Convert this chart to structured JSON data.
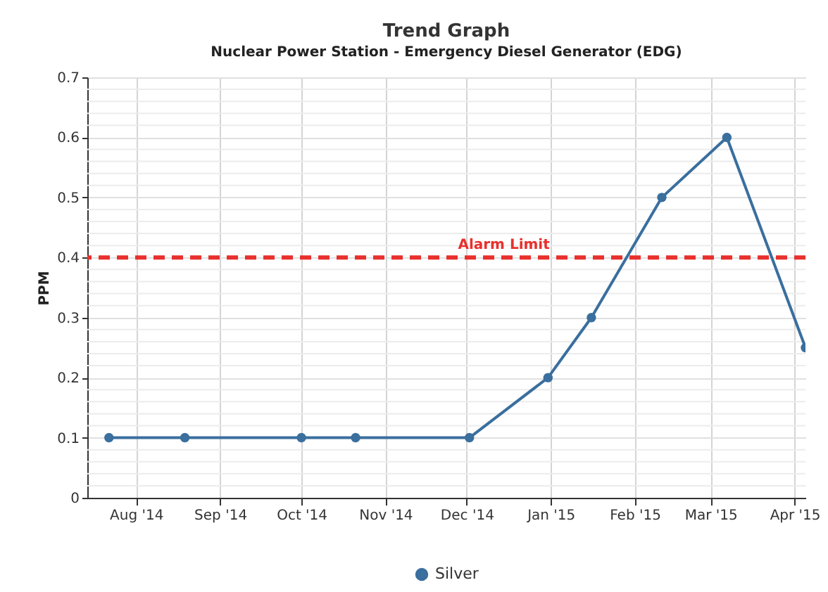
{
  "chart_data": {
    "type": "line",
    "title": "Trend Graph",
    "subtitle": "Nuclear Power Station - Emergency Diesel Generator (EDG)",
    "ylabel": "PPM",
    "x": [
      "2014-07-22",
      "2014-08-19",
      "2014-10-01",
      "2014-10-21",
      "2014-12-02",
      "2014-12-31",
      "2015-01-16",
      "2015-02-11",
      "2015-03-07",
      "2015-04-05"
    ],
    "series": [
      {
        "name": "Silver",
        "color": "#3a6f9e",
        "values": [
          0.1,
          0.1,
          0.1,
          0.1,
          0.1,
          0.2,
          0.3,
          0.5,
          0.6,
          0.25
        ]
      }
    ],
    "xlim": [
      "2014-07-14",
      "2015-04-05"
    ],
    "xticks": [
      {
        "value": "2014-08-01",
        "label": "Aug '14"
      },
      {
        "value": "2014-09-01",
        "label": "Sep '14"
      },
      {
        "value": "2014-10-01",
        "label": "Oct '14"
      },
      {
        "value": "2014-11-01",
        "label": "Nov '14"
      },
      {
        "value": "2014-12-01",
        "label": "Dec '14"
      },
      {
        "value": "2015-01-01",
        "label": "Jan '15"
      },
      {
        "value": "2015-02-01",
        "label": "Feb '15"
      },
      {
        "value": "2015-03-01",
        "label": "Mar '15"
      },
      {
        "value": "2015-04-01",
        "label": "Apr '15"
      }
    ],
    "ylim": [
      0,
      0.7
    ],
    "yticks": [
      0,
      {
        "value": 0.02,
        "label": null
      },
      {
        "value": 0.04,
        "label": null
      },
      {
        "value": 0.06,
        "label": null
      },
      {
        "value": 0.08,
        "label": null
      },
      0.1,
      {
        "value": 0.12,
        "label": null
      },
      {
        "value": 0.14,
        "label": null
      },
      {
        "value": 0.16,
        "label": null
      },
      {
        "value": 0.18,
        "label": null
      },
      0.2,
      {
        "value": 0.22,
        "label": null
      },
      {
        "value": 0.24,
        "label": null
      },
      {
        "value": 0.26,
        "label": null
      },
      {
        "value": 0.28,
        "label": null
      },
      0.3,
      {
        "value": 0.32,
        "label": null
      },
      {
        "value": 0.34,
        "label": null
      },
      {
        "value": 0.36,
        "label": null
      },
      {
        "value": 0.38,
        "label": null
      },
      0.4,
      {
        "value": 0.42,
        "label": null
      },
      {
        "value": 0.44,
        "label": null
      },
      {
        "value": 0.46,
        "label": null
      },
      {
        "value": 0.48,
        "label": null
      },
      0.5,
      {
        "value": 0.52,
        "label": null
      },
      {
        "value": 0.54,
        "label": null
      },
      {
        "value": 0.56,
        "label": null
      },
      {
        "value": 0.58,
        "label": null
      },
      0.6,
      {
        "value": 0.62,
        "label": null
      },
      {
        "value": 0.64,
        "label": null
      },
      {
        "value": 0.66,
        "label": null
      },
      {
        "value": 0.68,
        "label": null
      },
      0.7
    ],
    "ref_lines": [
      {
        "axis": "y",
        "value": 0.4,
        "label": "Alarm Limit",
        "color": "#e8302c",
        "line_style": "dashed"
      }
    ],
    "grid": true,
    "legend": "bottom",
    "marker": "circle",
    "line_style": "solid"
  }
}
